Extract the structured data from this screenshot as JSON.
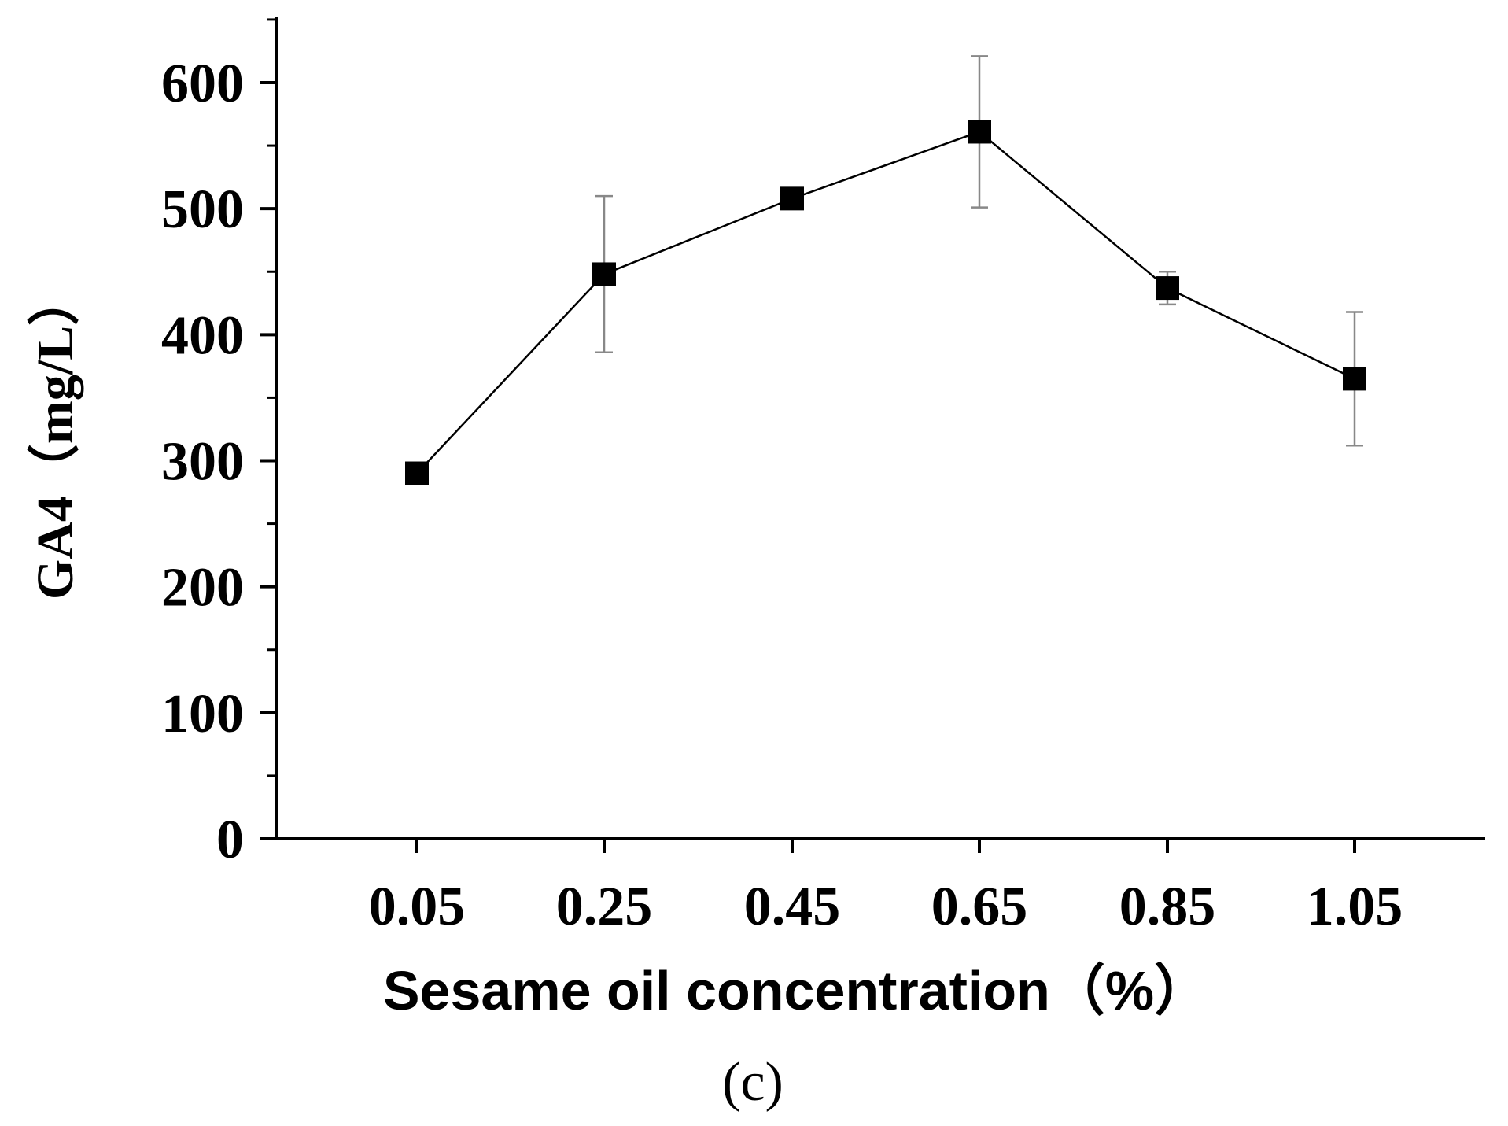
{
  "chart_data": {
    "type": "line",
    "x": [
      "0.05",
      "0.25",
      "0.45",
      "0.65",
      "0.85",
      "1.05"
    ],
    "series": [
      {
        "values": [
          290,
          448,
          508,
          561,
          437,
          365
        ],
        "error": [
          0,
          62,
          0,
          60,
          13,
          53
        ]
      }
    ],
    "xlabel": "Sesame oil concentration（%）",
    "ylabel": "GA4（mg/L）",
    "panel_label": "(c)",
    "ylim": [
      0,
      650
    ],
    "yticks": [
      "0",
      "100",
      "200",
      "300",
      "400",
      "500",
      "600"
    ],
    "grid": false,
    "legend": "none",
    "marker": "square",
    "line_color": "#000000",
    "errorbar_color": "#888888"
  }
}
